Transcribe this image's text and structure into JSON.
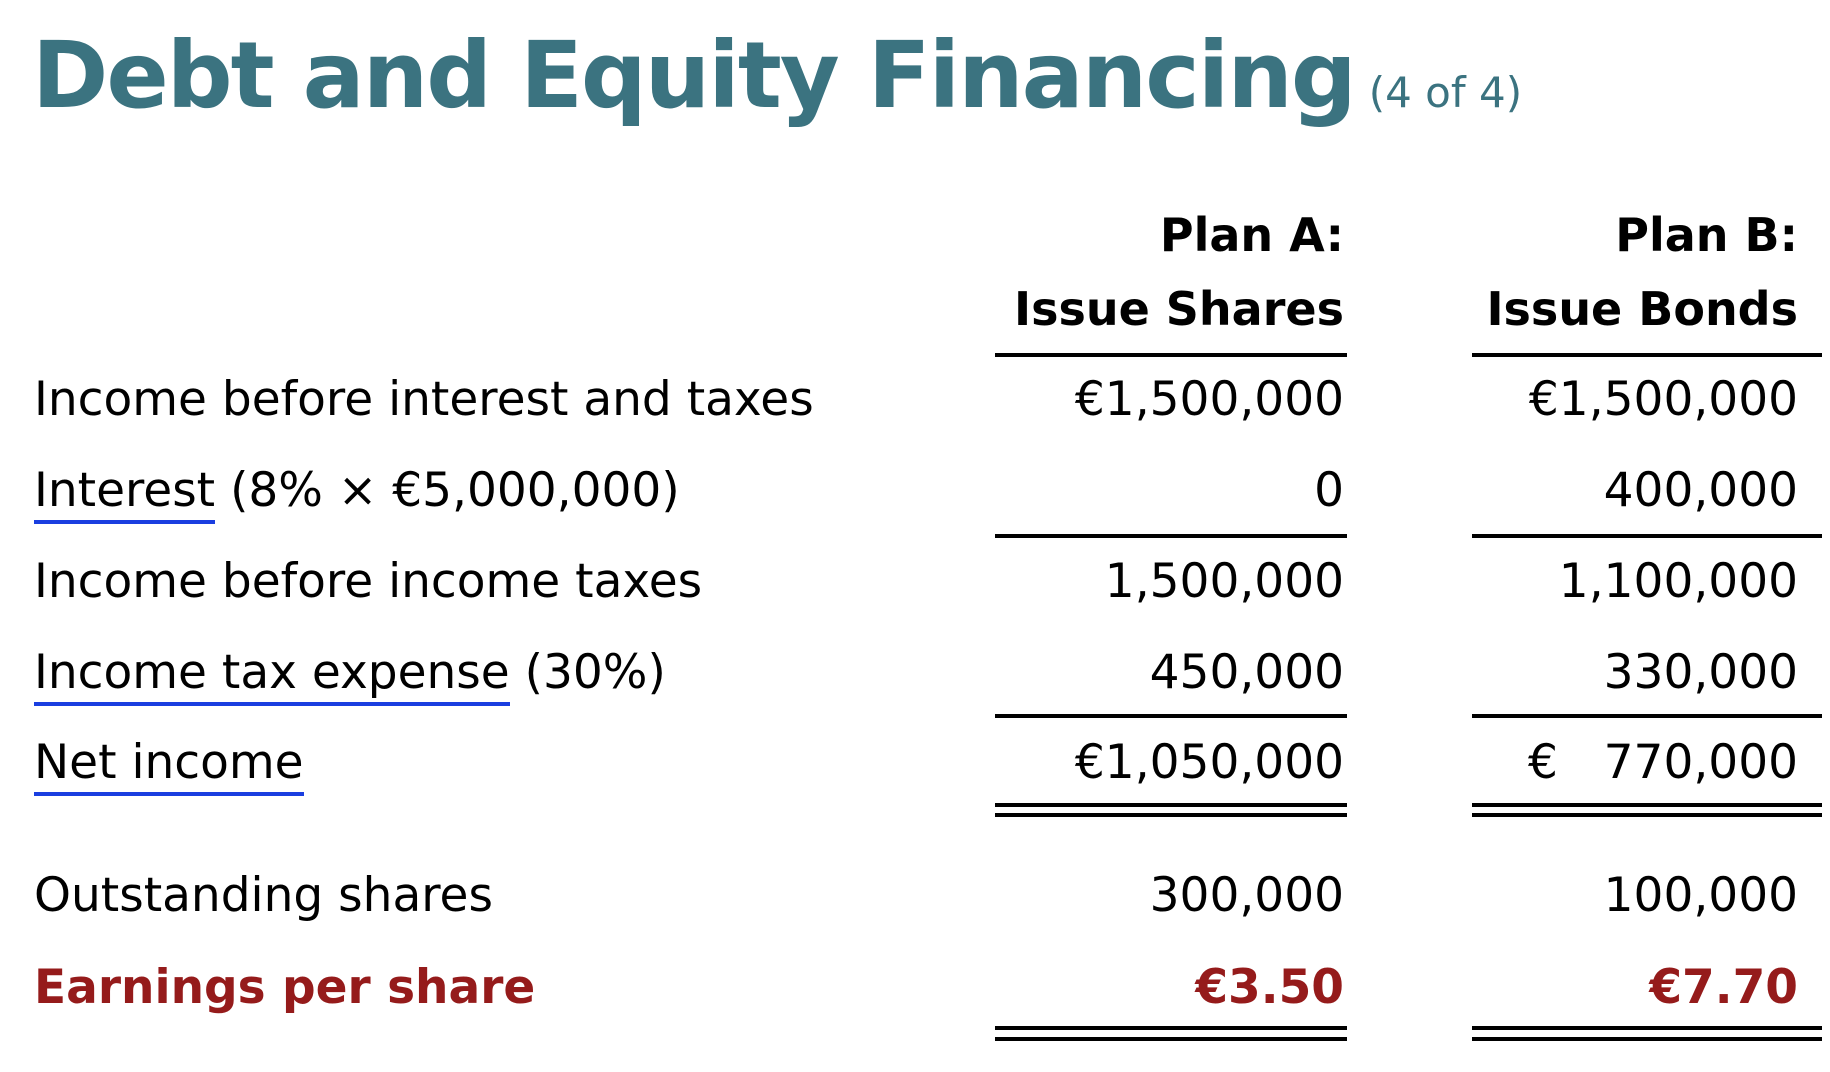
{
  "title": {
    "main": "Debt and Equity Financing",
    "sub": "(4 of 4)"
  },
  "columns": [
    {
      "line1": "Plan A:",
      "line2": "Issue Shares"
    },
    {
      "line1": "Plan B:",
      "line2": "Issue Bonds"
    }
  ],
  "rows": [
    {
      "label": "Income before interest and taxes",
      "label_underlined": "",
      "label_rest": "",
      "a": "€1,500,000",
      "b": "€1,500,000"
    },
    {
      "label": "",
      "label_underlined": "Interest",
      "label_rest": " (8% × €5,000,000)",
      "a": "0",
      "b": "400,000"
    },
    {
      "label": "Income before income taxes",
      "label_underlined": "",
      "label_rest": "",
      "a": "1,500,000",
      "b": "1,100,000"
    },
    {
      "label": "",
      "label_underlined": "Income tax expense",
      "label_rest": " (30%)",
      "a": "450,000",
      "b": "330,000"
    },
    {
      "label": "",
      "label_underlined": "Net income",
      "label_rest": "",
      "a": "€1,050,000",
      "b_symbol": "€",
      "b_amount": "770,000"
    },
    {
      "label": "Outstanding shares",
      "label_underlined": "",
      "label_rest": "",
      "a": "300,000",
      "b": "100,000"
    },
    {
      "label": "Earnings per share",
      "label_underlined": "",
      "label_rest": "",
      "a": "€3.50",
      "b": "€7.70"
    }
  ],
  "colors": {
    "title": "#3b7380",
    "eps": "#951b1b",
    "link_underline": "#1a3ee0",
    "text": "#000000"
  }
}
